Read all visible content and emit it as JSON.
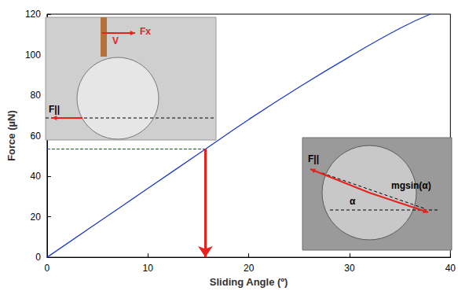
{
  "chart_data": {
    "type": "line",
    "x_label": "Sliding Angle (º)",
    "y_label": "Force (µN)",
    "x": [
      0,
      5,
      10,
      15,
      20,
      25,
      30,
      35,
      38
    ],
    "values": [
      0,
      17,
      34,
      51,
      68,
      84,
      99,
      113,
      120
    ],
    "color": "#1c3cc8",
    "xlim": [
      0,
      40
    ],
    "xticks": [
      0,
      10,
      20,
      30,
      40
    ],
    "ylim": [
      0,
      120
    ],
    "yticks": [
      0,
      20,
      40,
      60,
      80,
      100,
      120
    ],
    "grid": false,
    "highlight": {
      "x": 15.7,
      "y": 53.5,
      "color": "#e8211c"
    },
    "annotations": {
      "left_inset": [
        "V",
        "Fx",
        "F||"
      ],
      "right_inset": [
        "F||",
        "α",
        "mgsin(α)"
      ]
    }
  }
}
